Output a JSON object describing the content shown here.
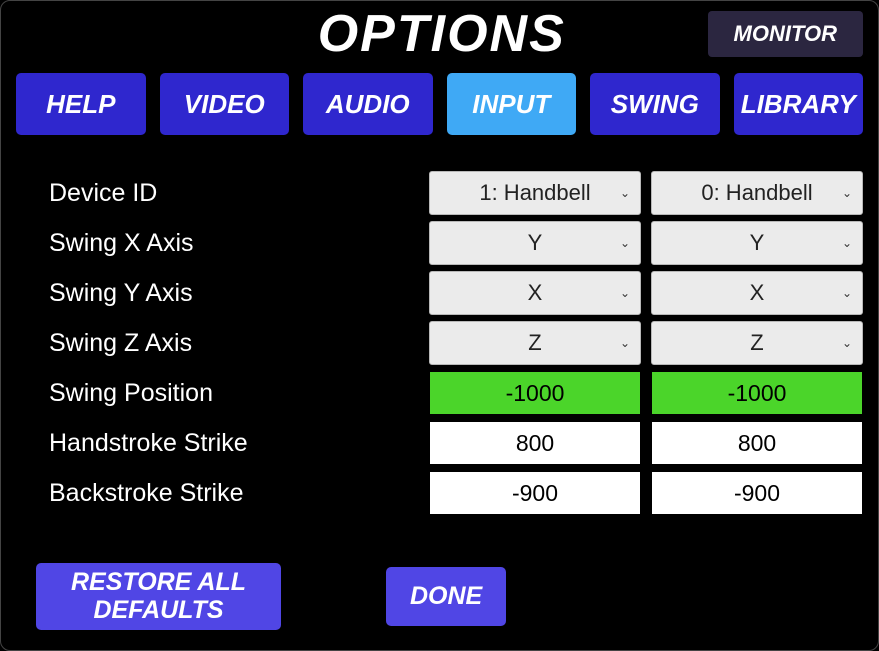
{
  "header": {
    "title": "OPTIONS",
    "monitor_label": "MONITOR"
  },
  "tabs": {
    "items": [
      {
        "label": "HELP",
        "active": false
      },
      {
        "label": "VIDEO",
        "active": false
      },
      {
        "label": "AUDIO",
        "active": false
      },
      {
        "label": "INPUT",
        "active": true
      },
      {
        "label": "SWING",
        "active": false
      },
      {
        "label": "LIBRARY",
        "active": false
      }
    ],
    "color_default": "#2f27ce",
    "color_active": "#3fa9f5"
  },
  "settings": {
    "rows": [
      {
        "label": "Device ID",
        "type": "dropdown",
        "col1": "1: Handbell",
        "col2": "0: Handbell"
      },
      {
        "label": "Swing X Axis",
        "type": "dropdown",
        "col1": "Y",
        "col2": "Y"
      },
      {
        "label": "Swing Y Axis",
        "type": "dropdown",
        "col1": "X",
        "col2": "X"
      },
      {
        "label": "Swing Z Axis",
        "type": "dropdown",
        "col1": "Z",
        "col2": "Z"
      },
      {
        "label": "Swing Position",
        "type": "value",
        "col1": "-1000",
        "col2": "-1000",
        "bg": "#4bd52a"
      },
      {
        "label": "Handstroke Strike",
        "type": "value",
        "col1": "800",
        "col2": "800",
        "bg": "#ffffff"
      },
      {
        "label": "Backstroke Strike",
        "type": "value",
        "col1": "-900",
        "col2": "-900",
        "bg": "#ffffff"
      }
    ],
    "dropdown_bg": "#ebebeb",
    "value_green_bg": "#4bd52a",
    "value_white_bg": "#ffffff"
  },
  "footer": {
    "restore_label": "RESTORE ALL DEFAULTS",
    "done_label": "DONE",
    "button_bg": "#5046e5"
  },
  "colors": {
    "page_bg": "#000000",
    "text": "#ffffff",
    "monitor_bg": "#2b2640"
  }
}
